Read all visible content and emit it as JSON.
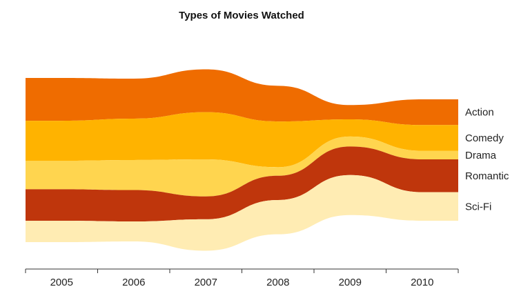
{
  "chart_data": {
    "type": "area",
    "subtype": "streamgraph",
    "title": "Types of Movies Watched",
    "xlabel": "",
    "ylabel": "",
    "categories": [
      "2005",
      "2006",
      "2007",
      "2008",
      "2009",
      "2010"
    ],
    "series": [
      {
        "name": "Action",
        "color": "#ef6c00",
        "values": [
          30,
          28,
          30,
          25,
          10,
          18
        ]
      },
      {
        "name": "Comedy",
        "color": "#ffb300",
        "values": [
          28,
          29,
          33,
          32,
          12,
          18
        ]
      },
      {
        "name": "Drama",
        "color": "#ffd54f",
        "values": [
          20,
          21,
          26,
          6,
          7,
          6
        ]
      },
      {
        "name": "Romantic",
        "color": "#bf360c",
        "values": [
          22,
          22,
          16,
          17,
          20,
          23
        ]
      },
      {
        "name": "Sci-Fi",
        "color": "#ffecb3",
        "values": [
          15,
          14,
          22,
          24,
          28,
          20
        ]
      }
    ],
    "legend_position": "right",
    "grid": false
  }
}
